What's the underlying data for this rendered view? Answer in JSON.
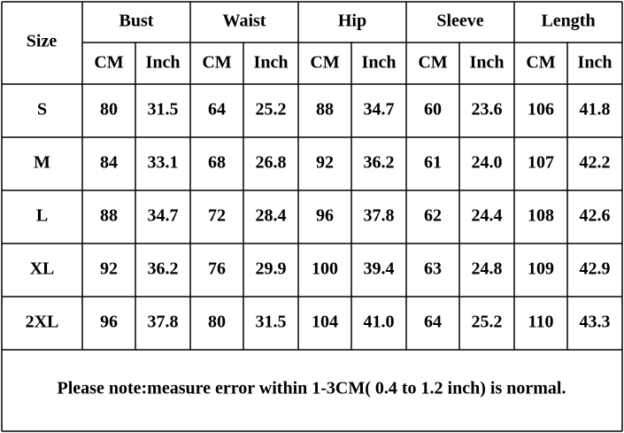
{
  "table": {
    "size_header": "Size",
    "groups": [
      "Bust",
      "Waist",
      "Hip",
      "Sleeve",
      "Length"
    ],
    "units": [
      "CM",
      "Inch",
      "CM",
      "Inch",
      "CM",
      "Inch",
      "CM",
      "Inch",
      "CM",
      "Inch"
    ],
    "rows": [
      [
        "S",
        "80",
        "31.5",
        "64",
        "25.2",
        "88",
        "34.7",
        "60",
        "23.6",
        "106",
        "41.8"
      ],
      [
        "M",
        "84",
        "33.1",
        "68",
        "26.8",
        "92",
        "36.2",
        "61",
        "24.0",
        "107",
        "42.2"
      ],
      [
        "L",
        "88",
        "34.7",
        "72",
        "28.4",
        "96",
        "37.8",
        "62",
        "24.4",
        "108",
        "42.6"
      ],
      [
        "XL",
        "92",
        "36.2",
        "76",
        "29.9",
        "100",
        "39.4",
        "63",
        "24.8",
        "109",
        "42.9"
      ],
      [
        "2XL",
        "96",
        "37.8",
        "80",
        "31.5",
        "104",
        "41.0",
        "64",
        "25.2",
        "110",
        "43.3"
      ]
    ]
  },
  "note": "Please note:measure error within 1-3CM( 0.4 to 1.2 inch) is normal."
}
